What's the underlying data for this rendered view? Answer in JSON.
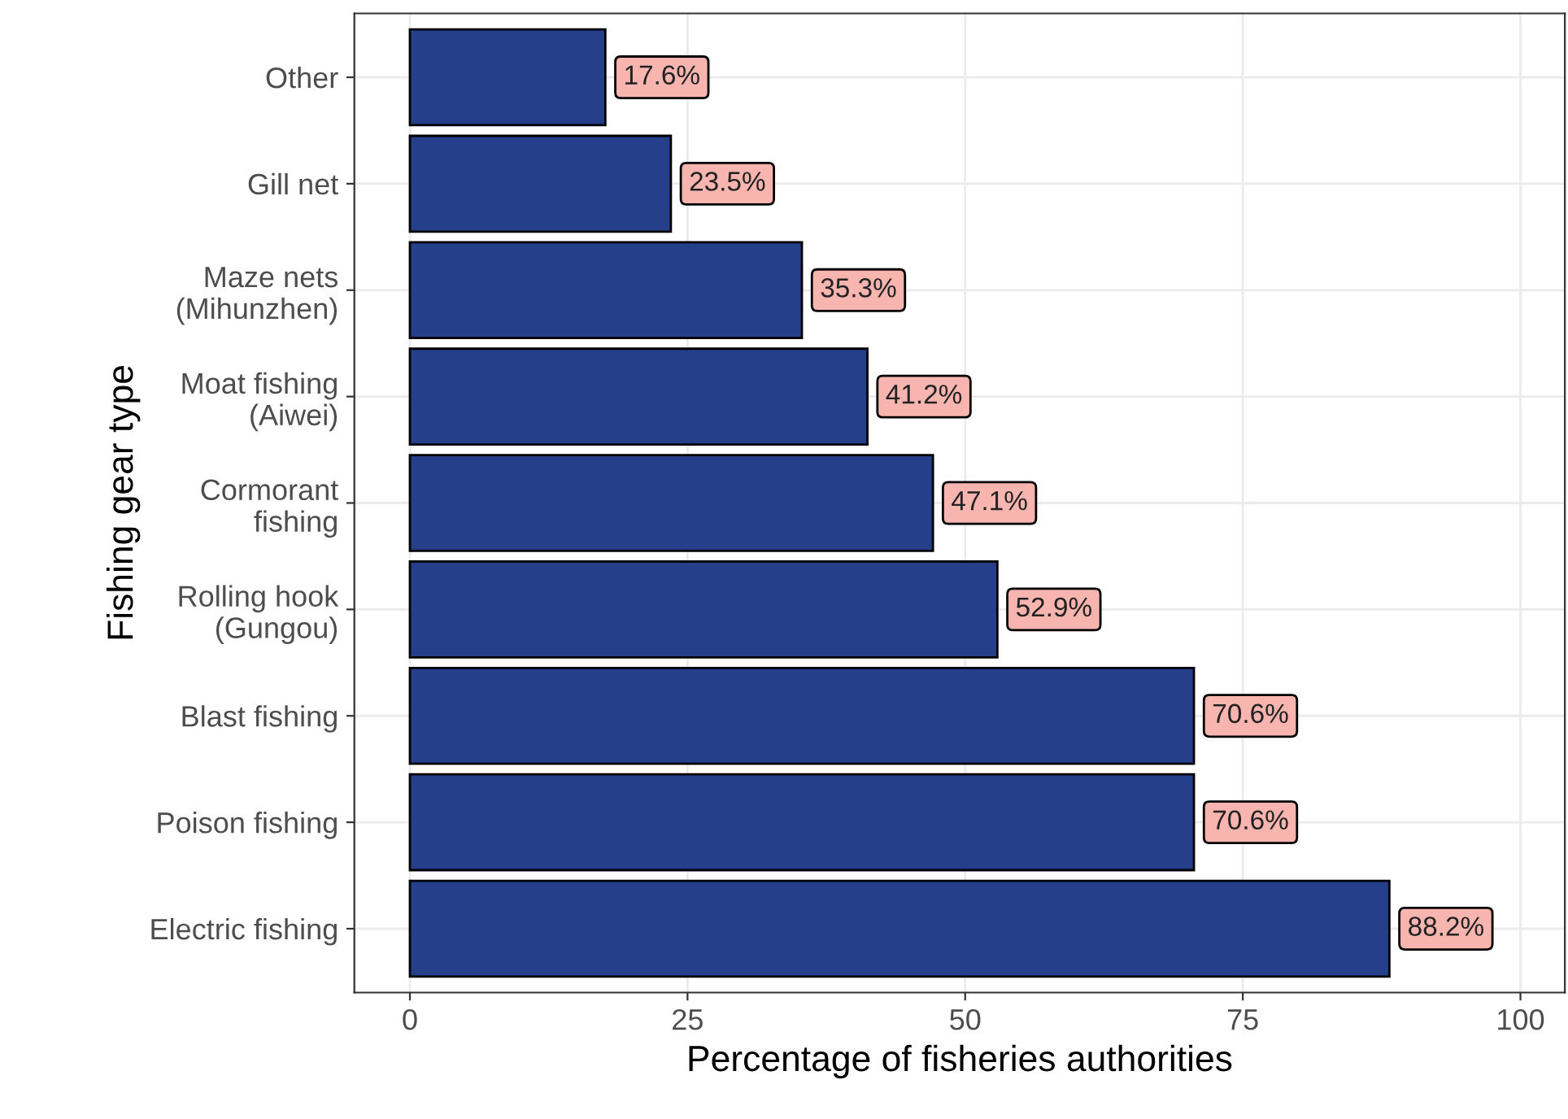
{
  "chart_data": {
    "type": "bar",
    "orientation": "horizontal",
    "xlabel": "Percentage of fisheries authorities",
    "ylabel": "Fishing gear type",
    "categories": [
      "Other",
      "Gill net",
      "Maze nets\n(Mihunzhen)",
      "Moat fishing\n(Aiwei)",
      "Cormorant\nfishing",
      "Rolling hook\n(Gungou)",
      "Blast fishing",
      "Poison fishing",
      "Electric fishing"
    ],
    "values": [
      17.6,
      23.5,
      35.3,
      41.2,
      47.1,
      52.9,
      70.6,
      70.6,
      88.2
    ],
    "value_labels": [
      "17.6%",
      "23.5%",
      "35.3%",
      "41.2%",
      "47.1%",
      "52.9%",
      "70.6%",
      "70.6%",
      "88.2%"
    ],
    "color": "#253f8a",
    "xlim": [
      -5,
      104
    ],
    "xticks": [
      0,
      25,
      50,
      75,
      100
    ],
    "grid": true,
    "legend": false
  }
}
